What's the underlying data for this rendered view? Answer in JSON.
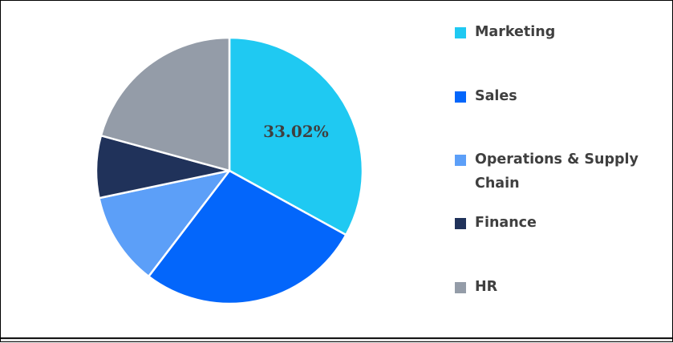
{
  "chart_data": {
    "type": "pie",
    "title": "",
    "legend_position": "right",
    "start_angle_deg": 0,
    "direction": "clockwise",
    "slices": [
      {
        "name": "Marketing",
        "value": 33.02,
        "color": "#1FC9F2"
      },
      {
        "name": "Sales",
        "value": 27.36,
        "color": "#0366FB"
      },
      {
        "name": "Operations & Supply Chain",
        "value": 11.32,
        "color": "#5C9FF8"
      },
      {
        "name": "Finance",
        "value": 7.55,
        "color": "#20325A"
      },
      {
        "name": "HR",
        "value": 20.75,
        "color": "#949CA8"
      }
    ],
    "data_labels": [
      {
        "slice_index": 0,
        "text": "33.02%"
      }
    ],
    "label_color": "#3F3F3F",
    "separator_color": "#FFFFFF"
  },
  "frame": {
    "background": "#FFFFFF",
    "border_color": "#000000",
    "bottom_line_color": "#121212",
    "bottom_strip_color": "#E9E9E9"
  }
}
